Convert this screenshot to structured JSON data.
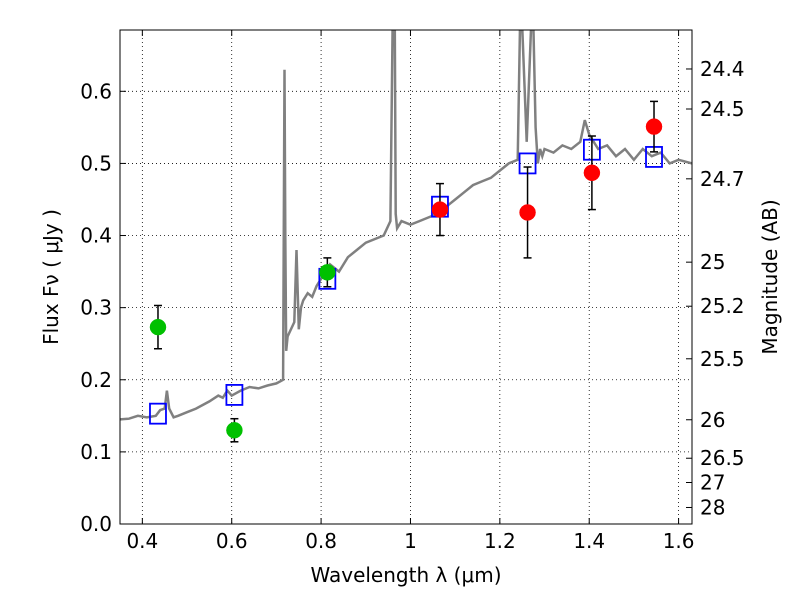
{
  "chart_data": {
    "type": "scatter",
    "xlabel": "Wavelength  λ (μm)",
    "ylabel": "Flux  Fν  ( μJy )",
    "y2label": "Magnitude (AB)",
    "xlim": [
      0.35,
      1.63
    ],
    "ylim": [
      0.0,
      0.685
    ],
    "grid": true,
    "grid_style": "dotted",
    "x_ticks": [
      0.4,
      0.6,
      0.8,
      1.0,
      1.2,
      1.4,
      1.6
    ],
    "x_tick_labels": [
      "0.4",
      "0.6",
      "0.8",
      "1",
      "1.2",
      "1.4",
      "1.6"
    ],
    "y_ticks": [
      0.0,
      0.1,
      0.2,
      0.3,
      0.4,
      0.5,
      0.6
    ],
    "y_tick_labels": [
      "0.0",
      "0.1",
      "0.2",
      "0.3",
      "0.4",
      "0.5",
      "0.6"
    ],
    "y2_tick_labels": [
      "24.4",
      "24.5",
      "24.7",
      "25",
      "25.2",
      "25.5",
      "26",
      "26.5",
      "27",
      "28"
    ],
    "colors": {
      "model": "#808080",
      "green": "#00c000",
      "red": "#ff0000",
      "model_box": "#0000ff",
      "errorbar": "#000000"
    },
    "series": [
      {
        "marker": "circle",
        "color": "green",
        "points": [
          {
            "x": 0.435,
            "y": 0.273,
            "err": 0.03
          },
          {
            "x": 0.606,
            "y": 0.13,
            "err": 0.016
          },
          {
            "x": 0.814,
            "y": 0.349,
            "err": 0.02
          }
        ]
      },
      {
        "marker": "circle",
        "color": "red",
        "points": [
          {
            "x": 1.066,
            "y": 0.436,
            "err": 0.036
          },
          {
            "x": 1.262,
            "y": 0.432,
            "err": 0.063
          },
          {
            "x": 1.406,
            "y": 0.487,
            "err": 0.051
          },
          {
            "x": 1.545,
            "y": 0.551,
            "err": 0.035
          }
        ]
      },
      {
        "marker": "square",
        "color": "model_box",
        "points": [
          {
            "x": 0.435,
            "y": 0.153
          },
          {
            "x": 0.606,
            "y": 0.179
          },
          {
            "x": 0.814,
            "y": 0.34
          },
          {
            "x": 1.066,
            "y": 0.44
          },
          {
            "x": 1.262,
            "y": 0.5
          },
          {
            "x": 1.406,
            "y": 0.519
          },
          {
            "x": 1.545,
            "y": 0.509
          }
        ]
      },
      {
        "type": "line",
        "color": "model",
        "x": [
          0.35,
          0.37,
          0.39,
          0.41,
          0.43,
          0.44,
          0.45,
          0.455,
          0.46,
          0.47,
          0.48,
          0.5,
          0.52,
          0.55,
          0.57,
          0.58,
          0.59,
          0.6,
          0.62,
          0.64,
          0.66,
          0.68,
          0.7,
          0.715,
          0.718,
          0.72,
          0.722,
          0.725,
          0.74,
          0.745,
          0.75,
          0.755,
          0.76,
          0.77,
          0.78,
          0.79,
          0.8,
          0.82,
          0.84,
          0.86,
          0.88,
          0.9,
          0.92,
          0.94,
          0.955,
          0.96,
          0.962,
          0.965,
          0.967,
          0.97,
          0.98,
          1.0,
          1.02,
          1.04,
          1.06,
          1.08,
          1.1,
          1.12,
          1.14,
          1.16,
          1.18,
          1.2,
          1.22,
          1.24,
          1.245,
          1.25,
          1.26,
          1.27,
          1.275,
          1.28,
          1.285,
          1.29,
          1.295,
          1.3,
          1.32,
          1.34,
          1.36,
          1.38,
          1.39,
          1.4,
          1.42,
          1.44,
          1.46,
          1.48,
          1.5,
          1.52,
          1.54,
          1.56,
          1.58,
          1.6,
          1.63
        ],
        "y": [
          0.145,
          0.146,
          0.15,
          0.148,
          0.15,
          0.158,
          0.16,
          0.185,
          0.16,
          0.148,
          0.15,
          0.155,
          0.16,
          0.17,
          0.178,
          0.175,
          0.185,
          0.178,
          0.185,
          0.19,
          0.188,
          0.192,
          0.195,
          0.2,
          0.63,
          0.4,
          0.24,
          0.26,
          0.28,
          0.38,
          0.27,
          0.3,
          0.31,
          0.32,
          0.315,
          0.33,
          0.34,
          0.36,
          0.35,
          0.37,
          0.38,
          0.39,
          0.395,
          0.4,
          0.42,
          0.69,
          0.69,
          0.69,
          0.43,
          0.41,
          0.42,
          0.415,
          0.42,
          0.425,
          0.43,
          0.44,
          0.45,
          0.46,
          0.47,
          0.475,
          0.48,
          0.49,
          0.5,
          0.505,
          0.69,
          0.69,
          0.53,
          0.69,
          0.69,
          0.55,
          0.5,
          0.52,
          0.51,
          0.52,
          0.515,
          0.525,
          0.52,
          0.53,
          0.56,
          0.54,
          0.52,
          0.525,
          0.51,
          0.52,
          0.505,
          0.52,
          0.51,
          0.515,
          0.5,
          0.505,
          0.5
        ]
      }
    ]
  }
}
